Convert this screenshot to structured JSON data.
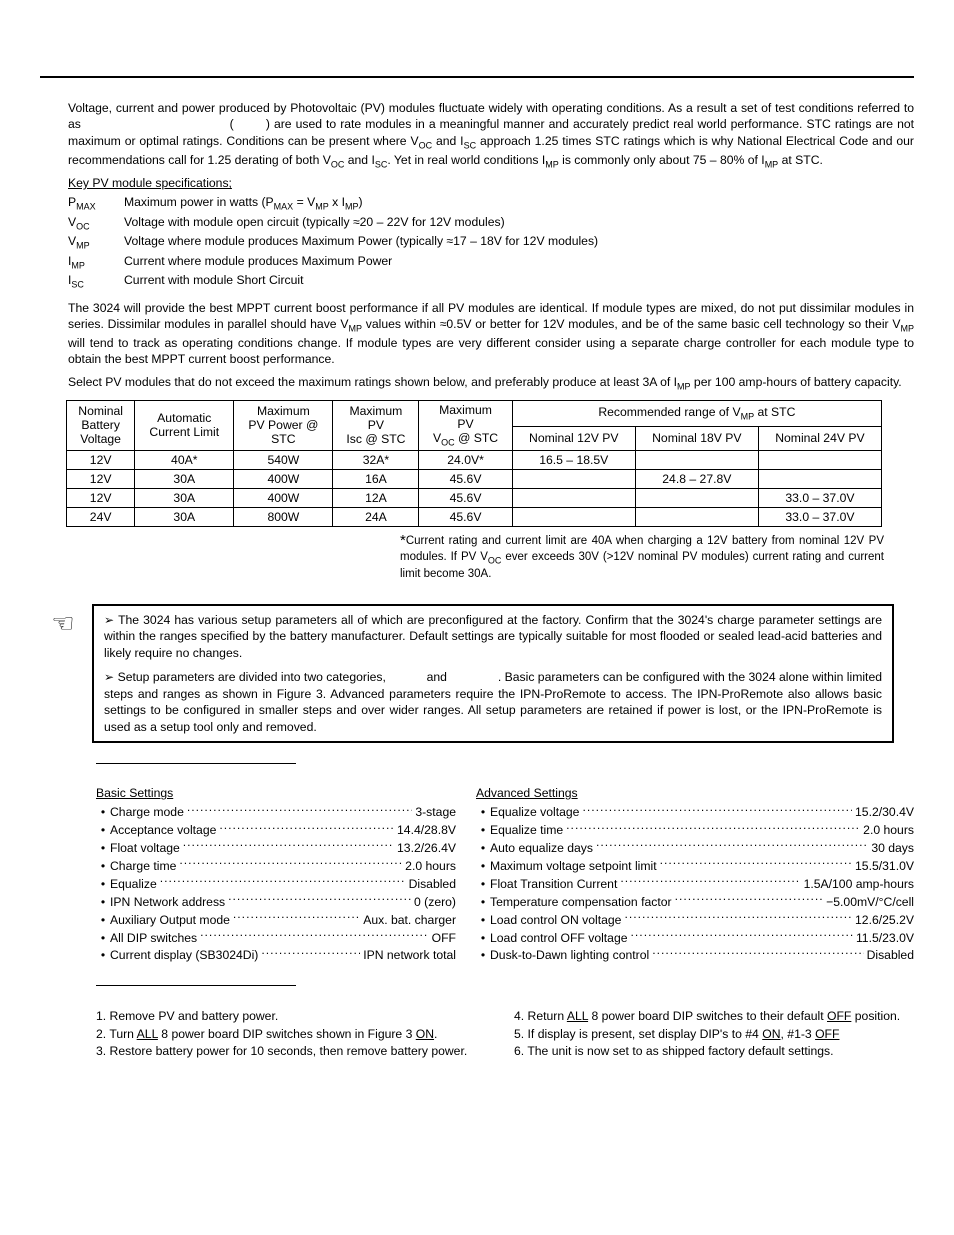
{
  "intro": {
    "p1_a": "Voltage, current and power produced by Photovoltaic (PV) modules fluctuate widely with operating conditions. As a result a set of test conditions referred to as ",
    "p1_gap1": "                                    (        )",
    "p1_b": " are used to rate modules in a meaningful manner and accurately predict real world performance. STC ratings are not maximum or optimal ratings. Conditions can be present where V",
    "p1_c": " and I",
    "p1_d": " approach 1.25 times STC ratings which is why National Electrical Code and our recommendations call for 1.25 derating of both V",
    "p1_e": " and I",
    "p1_f": ". Yet in real world conditions I",
    "p1_g": " is commonly only about 75 – 80% of I",
    "p1_h": " at STC.",
    "sub_oc": "OC",
    "sub_sc": "SC",
    "sub_mp": "MP",
    "sub_max": "MAX"
  },
  "key_spec_heading": "Key PV module specifications;",
  "specs": {
    "pmax_sym": "P",
    "pmax_desc": "Maximum power in watts  (P",
    "pmax_desc2": " = V",
    "pmax_desc3": " x I",
    "pmax_desc4": ")",
    "voc_sym": "V",
    "voc_desc": "Voltage with module open circuit  (typically ≈20 – 22V for 12V modules)",
    "vmp_sym": "V",
    "vmp_desc": "Voltage where module produces Maximum Power  (typically ≈17 – 18V for 12V modules)",
    "imp_sym": "I",
    "imp_desc": "Current where module produces Maximum Power",
    "isc_sym": "I",
    "isc_desc": "Current with module Short Circuit"
  },
  "mppt_p": {
    "a": "The 3024 will provide the best MPPT current boost performance if all PV modules are identical. If module types are mixed, do not put dissimilar modules in series. Dissimilar modules in parallel should have V",
    "b": " values within ≈0.5V or better for 12V modules, and be of the same basic cell technology so their V",
    "c": " will tend to track as operating conditions change. If module types are very different consider using a separate charge controller for each module type to obtain the best MPPT current boost performance."
  },
  "select_p": {
    "a": "Select PV modules that do not exceed the maximum ratings shown below, and preferably produce at least 3A of I",
    "b": " per 100 amp-hours of battery capacity."
  },
  "table": {
    "h_nominal": "Nominal\nBattery\nVoltage",
    "h_auto": "Automatic\nCurrent Limit",
    "h_maxpv": "Maximum\nPV Power @\nSTC",
    "h_maxisc": "Maximum\nPV\nIsc @ STC",
    "h_maxvoc": "Maximum\nPV\nV",
    "h_maxvoc2": " @ STC",
    "h_recommended": "Recommended range of V",
    "h_recommended2": " at STC",
    "h_n12": "Nominal 12V PV",
    "h_n18": "Nominal 18V PV",
    "h_n24": "Nominal 24V PV",
    "rows": [
      [
        "12V",
        "40A*",
        "540W",
        "32A*",
        "24.0V*",
        "16.5 – 18.5V",
        "",
        ""
      ],
      [
        "12V",
        "30A",
        "400W",
        "16A",
        "45.6V",
        "",
        "24.8 – 27.8V",
        ""
      ],
      [
        "12V",
        "30A",
        "400W",
        "12A",
        "45.6V",
        "",
        "",
        "33.0 – 37.0V"
      ],
      [
        "24V",
        "30A",
        "800W",
        "24A",
        "45.6V",
        "",
        "",
        "33.0 – 37.0V"
      ]
    ]
  },
  "footnote": {
    "star": "*",
    "a": "Current rating and current limit are 40A when charging a 12V battery from nominal 12V PV modules. If PV V",
    "b": " ever exceeds 30V (>12V nominal PV modules) current rating and current limit become 30A."
  },
  "notebox": {
    "n1a": "➢ The 3024 has various setup parameters all of which are preconfigured at the factory. Confirm that the 3024's charge parameter settings are within the ranges specified by the battery manufacturer. Default settings are typically suitable for most flooded or sealed lead-acid batteries and likely require no changes.",
    "n2a": "➢ Setup parameters are divided into two categories, ",
    "n2gap1": "          ",
    "n2b": " and ",
    "n2gap2": "              ",
    "n2c": ". Basic parameters can be configured with the 3024 alone within limited steps and ranges as shown in Figure 3. Advanced parameters require the IPN-ProRemote to access. The IPN-ProRemote also allows basic settings to be configured in smaller steps and over wider ranges. All setup parameters are retained if power is lost, or the IPN-ProRemote is used as a setup tool only and removed."
  },
  "basic_heading": "Basic Settings",
  "basic": [
    {
      "label": "Charge mode",
      "val": "3-stage"
    },
    {
      "label": "Acceptance voltage",
      "val": "14.4/28.8V"
    },
    {
      "label": "Float voltage",
      "val": "13.2/26.4V"
    },
    {
      "label": "Charge time",
      "val": "2.0 hours"
    },
    {
      "label": "Equalize",
      "val": "Disabled"
    },
    {
      "label": "IPN Network address",
      "val": "0 (zero)"
    },
    {
      "label": "Auxiliary Output mode",
      "val": "Aux. bat. charger"
    },
    {
      "label": "All DIP switches",
      "val": "OFF"
    },
    {
      "label": "Current display (SB3024Di)",
      "val": "IPN network total"
    }
  ],
  "advanced_heading": "Advanced Settings",
  "advanced": [
    {
      "label": "Equalize voltage",
      "val": "15.2/30.4V"
    },
    {
      "label": "Equalize time",
      "val": "2.0 hours"
    },
    {
      "label": "Auto equalize days",
      "val": "30 days"
    },
    {
      "label": "Maximum voltage setpoint limit",
      "val": "15.5/31.0V"
    },
    {
      "label": "Float Transition Current",
      "val": "1.5A/100 amp-hours"
    },
    {
      "label": "Temperature compensation factor",
      "val": "−5.00mV/°C/cell"
    },
    {
      "label": "Load control ON voltage",
      "val": "12.6/25.2V"
    },
    {
      "label": "Load control OFF voltage",
      "val": "11.5/23.0V"
    },
    {
      "label": "Dusk-to-Dawn lighting control",
      "val": "Disabled"
    }
  ],
  "reset": {
    "r1": "1.  Remove PV and battery power.",
    "r2a": "2.  Turn ",
    "r2_all": "ALL",
    "r2b": " 8 power board DIP switches shown in Figure 3 ",
    "r2_on": "ON",
    "r2c": ".",
    "r3": "3.  Restore battery power for 10 seconds, then remove battery power.",
    "r4a": "4.  Return ",
    "r4_all": "ALL",
    "r4b": " 8 power board DIP switches to their default ",
    "r4_off": "OFF",
    "r4c": " position.",
    "r5a": "5.  If display is present, set display DIP's to  #4 ",
    "r5_on": "ON",
    "r5b": ",  #1-3 ",
    "r5_off": "OFF",
    "r6": "6.  The unit is now set to as shipped factory default settings."
  }
}
